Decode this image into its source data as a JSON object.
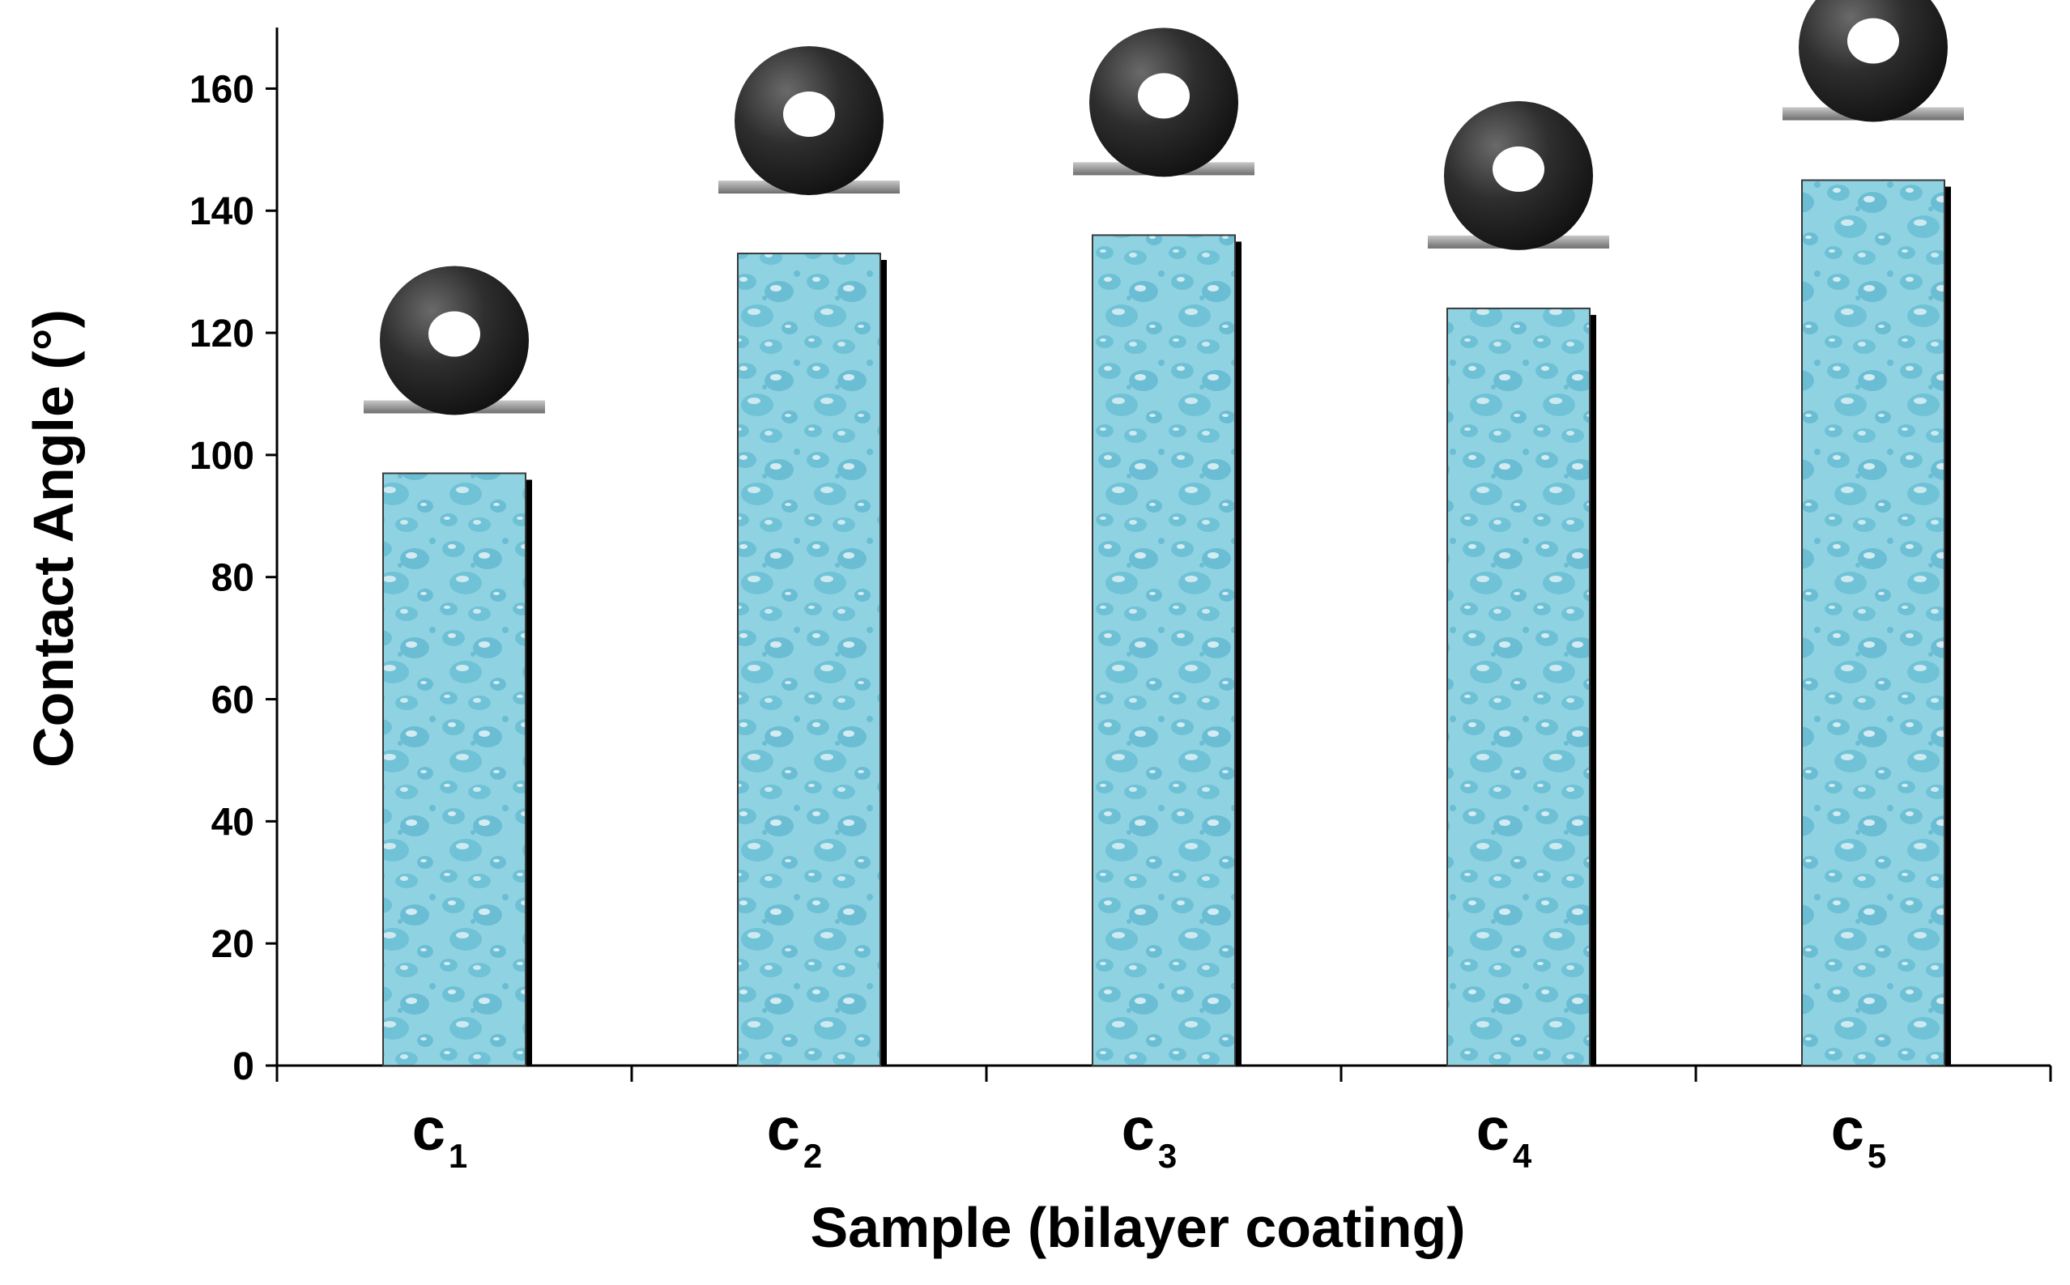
{
  "chart_data": {
    "type": "bar",
    "categories": [
      {
        "main": "c",
        "sub": "1"
      },
      {
        "main": "c",
        "sub": "2"
      },
      {
        "main": "c",
        "sub": "3"
      },
      {
        "main": "c",
        "sub": "4"
      },
      {
        "main": "c",
        "sub": "5"
      }
    ],
    "values": [
      97,
      133,
      136,
      124,
      145
    ],
    "xlabel": "Sample (bilayer coating)",
    "ylabel": "Contact Angle (°)",
    "ylim": [
      0,
      170
    ],
    "yticks": [
      "0",
      "20",
      "40",
      "60",
      "80",
      "100",
      "120",
      "140",
      "160"
    ],
    "grid": false,
    "legend": "none",
    "bar_pattern": "water droplet texture",
    "bar_color": "#8fd3e3",
    "bar_shadow_color": "#000000",
    "droplet_images": [
      "droplet-icon",
      "droplet-icon",
      "droplet-icon",
      "droplet-icon",
      "droplet-icon"
    ]
  }
}
